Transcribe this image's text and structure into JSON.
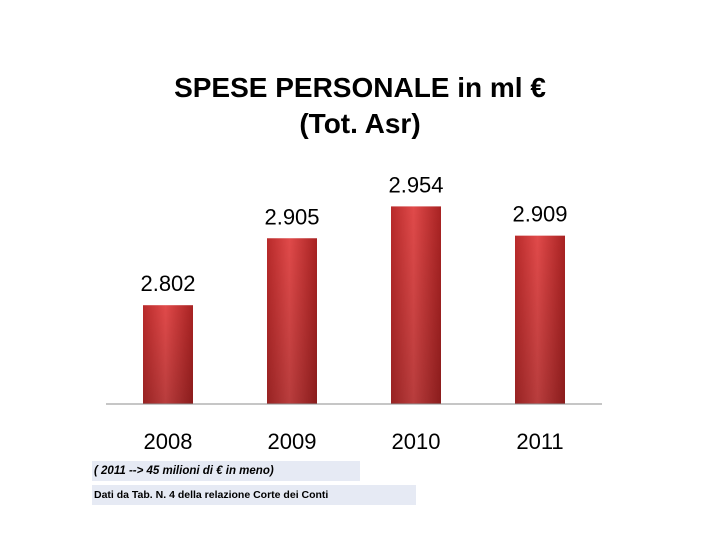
{
  "chart_data": {
    "type": "bar",
    "title": [
      "SPESE PERSONALE in ml €",
      "(Tot. Asr)"
    ],
    "categories": [
      "2008",
      "2009",
      "2010",
      "2011"
    ],
    "values": [
      2.802,
      2.905,
      2.954,
      2.909
    ],
    "value_labels": [
      "2.802",
      "2.905",
      "2.954",
      "2.909"
    ],
    "ylim": [
      2.65,
      2.97
    ],
    "grid": false,
    "bar_color": "#d23a3a",
    "axis_color": "#8c8c8c"
  },
  "notes": {
    "line1": "( 2011 --> 45 milioni di € in meno)",
    "line2": "Dati da Tab. N. 4 della relazione Corte dei Conti"
  }
}
